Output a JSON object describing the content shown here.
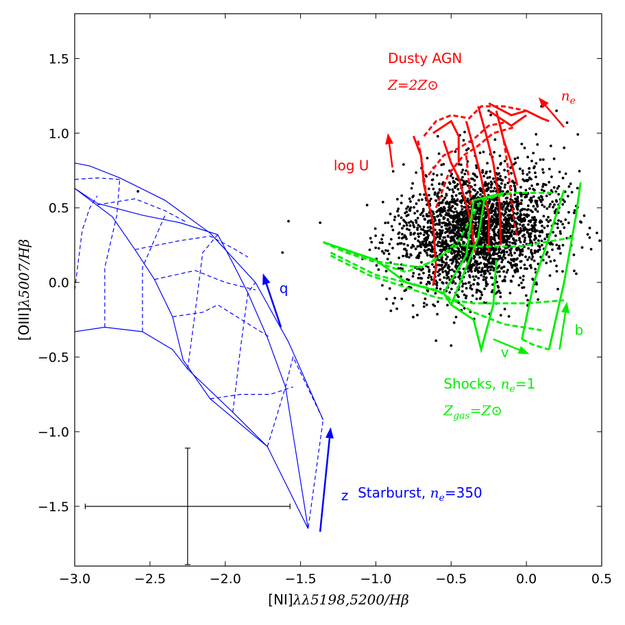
{
  "chart_data": {
    "type": "scatter",
    "xlim": [
      -3.0,
      0.5
    ],
    "ylim": [
      -1.9,
      1.8
    ],
    "x_ticks": [
      {
        "value": -3.0,
        "label": "−3.0"
      },
      {
        "value": -2.5,
        "label": "−2.5"
      },
      {
        "value": -2.0,
        "label": "−2.0"
      },
      {
        "value": -1.5,
        "label": "−1.5"
      },
      {
        "value": -1.0,
        "label": "−1.0"
      },
      {
        "value": -0.5,
        "label": "−0.5"
      },
      {
        "value": 0.0,
        "label": "0.0"
      },
      {
        "value": 0.5,
        "label": "0.5"
      }
    ],
    "y_ticks": [
      {
        "value": -1.5,
        "label": "−1.5"
      },
      {
        "value": -1.0,
        "label": "−1.0"
      },
      {
        "value": -0.5,
        "label": "−0.5"
      },
      {
        "value": 0.0,
        "label": "0.0"
      },
      {
        "value": 0.5,
        "label": "0.5"
      },
      {
        "value": 1.0,
        "label": "1.0"
      },
      {
        "value": 1.5,
        "label": "1.5"
      }
    ],
    "xlabel": {
      "plain": "[NI]",
      "math": "λλ5198,5200/Hβ"
    },
    "ylabel": {
      "plain": "[OIII]",
      "math": "λ5007/Hβ"
    },
    "grid": false,
    "observed_points": {
      "color": "#000000",
      "cluster": {
        "x_mean": -0.32,
        "y_mean": 0.35,
        "x_sd": 0.3,
        "y_sd": 0.2,
        "count": 2600
      },
      "outliers": [
        [
          -1.58,
          0.41
        ],
        [
          -1.37,
          0.4
        ],
        [
          -1.62,
          0.2
        ],
        [
          -0.9,
          -0.19
        ],
        [
          -0.6,
          -0.39
        ],
        [
          -0.48,
          -0.27
        ],
        [
          -0.25,
          1.15
        ],
        [
          0.1,
          1.18
        ],
        [
          0.2,
          1.15
        ],
        [
          0.27,
          1.07
        ],
        [
          -2.58,
          0.61
        ],
        [
          -0.8,
          -0.05
        ],
        [
          -0.17,
          -0.22
        ],
        [
          0.42,
          0.3
        ]
      ]
    },
    "error_bar": {
      "x": -2.25,
      "y": -1.5,
      "xerr": 0.68,
      "yerr": 0.39,
      "color": "#000000"
    },
    "starburst_grid": {
      "color": "#0000ff",
      "solid_lines": [
        [
          [
            -3.0,
            0.8
          ],
          [
            -2.9,
            0.78
          ],
          [
            -2.7,
            0.7
          ],
          [
            -2.4,
            0.55
          ],
          [
            -2.1,
            0.33
          ],
          [
            -1.8,
            0.0
          ],
          [
            -1.58,
            -0.4
          ],
          [
            -1.35,
            -0.92
          ]
        ],
        [
          [
            -3.0,
            0.63
          ],
          [
            -2.85,
            0.53
          ],
          [
            -2.55,
            0.45
          ],
          [
            -2.3,
            0.4
          ],
          [
            -2.05,
            0.32
          ],
          [
            -1.95,
            0.13
          ],
          [
            -1.85,
            -0.07
          ],
          [
            -1.72,
            -0.37
          ],
          [
            -1.6,
            -0.7
          ],
          [
            -1.45,
            -1.65
          ]
        ],
        [
          [
            -3.0,
            0.63
          ],
          [
            -2.75,
            0.44
          ],
          [
            -2.6,
            0.22
          ],
          [
            -2.47,
            0.02
          ],
          [
            -2.35,
            -0.23
          ],
          [
            -2.28,
            -0.52
          ],
          [
            -2.1,
            -0.78
          ],
          [
            -1.72,
            -1.1
          ],
          [
            -1.45,
            -1.65
          ]
        ],
        [
          [
            -3.0,
            -0.33
          ],
          [
            -2.8,
            -0.3
          ],
          [
            -2.55,
            -0.33
          ],
          [
            -2.35,
            -0.45
          ],
          [
            -2.25,
            -0.58
          ],
          [
            -1.95,
            -0.87
          ],
          [
            -1.72,
            -1.1
          ]
        ]
      ],
      "dashed_lines": [
        [
          [
            -3.0,
            0.69
          ],
          [
            -2.85,
            0.7
          ],
          [
            -2.7,
            0.69
          ]
        ],
        [
          [
            -2.85,
            0.52
          ],
          [
            -2.6,
            0.56
          ],
          [
            -2.4,
            0.48
          ],
          [
            -2.25,
            0.4
          ]
        ],
        [
          [
            -2.6,
            0.22
          ],
          [
            -2.3,
            0.28
          ],
          [
            -2.1,
            0.31
          ],
          [
            -1.95,
            0.23
          ],
          [
            -1.85,
            0.17
          ]
        ],
        [
          [
            -2.47,
            0.02
          ],
          [
            -2.2,
            0.08
          ],
          [
            -2.0,
            0.0
          ],
          [
            -1.8,
            -0.05
          ]
        ],
        [
          [
            -2.35,
            -0.23
          ],
          [
            -2.15,
            -0.2
          ],
          [
            -2.05,
            -0.15
          ],
          [
            -1.7,
            -0.37
          ]
        ],
        [
          [
            -2.1,
            -0.78
          ],
          [
            -1.9,
            -0.75
          ],
          [
            -1.7,
            -0.75
          ],
          [
            -1.55,
            -0.7
          ]
        ],
        [
          [
            -3.0,
            -0.05
          ],
          [
            -2.95,
            0.35
          ],
          [
            -2.9,
            0.5
          ],
          [
            -2.85,
            0.58
          ]
        ],
        [
          [
            -2.8,
            -0.3
          ],
          [
            -2.8,
            0.1
          ],
          [
            -2.72,
            0.45
          ],
          [
            -2.7,
            0.7
          ]
        ],
        [
          [
            -2.55,
            -0.33
          ],
          [
            -2.55,
            0.1
          ],
          [
            -2.4,
            0.45
          ]
        ],
        [
          [
            -2.25,
            -0.58
          ],
          [
            -2.2,
            -0.2
          ],
          [
            -2.15,
            0.2
          ],
          [
            -2.05,
            0.32
          ]
        ],
        [
          [
            -1.95,
            -0.87
          ],
          [
            -1.9,
            -0.45
          ],
          [
            -1.85,
            -0.07
          ],
          [
            -1.8,
            0.0
          ]
        ],
        [
          [
            -1.72,
            -1.1
          ],
          [
            -1.6,
            -0.7
          ],
          [
            -1.55,
            -0.5
          ],
          [
            -1.35,
            -0.92
          ],
          [
            -1.45,
            -1.65
          ]
        ]
      ]
    },
    "shock_grid": {
      "color": "#00ee00",
      "solid_lines": [
        [
          [
            -1.35,
            0.27
          ],
          [
            -1.0,
            0.15
          ],
          [
            -0.8,
            0.0
          ],
          [
            -0.55,
            -0.07
          ],
          [
            -0.5,
            -0.15
          ],
          [
            -0.35,
            -0.25
          ]
        ],
        [
          [
            -0.55,
            -0.07
          ],
          [
            -0.4,
            0.18
          ],
          [
            -0.35,
            0.55
          ],
          [
            -0.15,
            0.6
          ]
        ],
        [
          [
            -0.5,
            -0.15
          ],
          [
            -0.32,
            0.3
          ],
          [
            -0.28,
            0.55
          ]
        ],
        [
          [
            -0.35,
            -0.25
          ],
          [
            -0.3,
            -0.45
          ],
          [
            -0.22,
            -0.15
          ],
          [
            -0.2,
            0.15
          ]
        ],
        [
          [
            -0.03,
            -0.38
          ],
          [
            0.05,
            0.0
          ],
          [
            0.15,
            0.3
          ],
          [
            0.25,
            0.62
          ]
        ],
        [
          [
            0.15,
            -0.45
          ],
          [
            0.25,
            0.0
          ],
          [
            0.33,
            0.45
          ],
          [
            0.36,
            0.67
          ]
        ]
      ],
      "dashed_lines": [
        [
          [
            -1.35,
            0.27
          ],
          [
            -1.2,
            0.2
          ],
          [
            -0.8,
            0.07
          ],
          [
            -0.6,
            0.15
          ],
          [
            -0.45,
            0.28
          ],
          [
            -0.3,
            0.55
          ],
          [
            -0.1,
            0.6
          ],
          [
            0.2,
            0.6
          ]
        ],
        [
          [
            -1.3,
            0.25
          ],
          [
            -1.0,
            0.14
          ],
          [
            -0.7,
            0.1
          ],
          [
            -0.45,
            0.25
          ],
          [
            -0.3,
            0.24
          ],
          [
            -0.05,
            0.24
          ],
          [
            0.3,
            0.3
          ]
        ],
        [
          [
            -1.3,
            0.18
          ],
          [
            -1.05,
            0.05
          ],
          [
            -0.9,
            0.0
          ],
          [
            -0.6,
            -0.1
          ],
          [
            -0.35,
            -0.14
          ],
          [
            0.0,
            -0.14
          ],
          [
            0.25,
            -0.12
          ]
        ],
        [
          [
            -1.3,
            0.2
          ],
          [
            -1.0,
            0.05
          ],
          [
            -0.6,
            -0.05
          ],
          [
            -0.35,
            -0.2
          ],
          [
            -0.15,
            -0.28
          ],
          [
            0.1,
            -0.32
          ]
        ],
        [
          [
            -0.03,
            -0.38
          ],
          [
            0.05,
            -0.42
          ],
          [
            0.15,
            -0.45
          ]
        ]
      ]
    },
    "agn_grid": {
      "color": "#ff0000",
      "solid_lines": [
        [
          [
            -0.75,
            0.98
          ],
          [
            -0.7,
            0.85
          ],
          [
            -0.68,
            0.65
          ],
          [
            -0.62,
            0.4
          ],
          [
            -0.6,
            0.1
          ],
          [
            -0.62,
            -0.02
          ]
        ],
        [
          [
            -0.62,
            1.0
          ],
          [
            -0.5,
            1.08
          ],
          [
            -0.45,
            0.98
          ],
          [
            -0.45,
            0.8
          ]
        ],
        [
          [
            -0.55,
            0.95
          ],
          [
            -0.5,
            0.8
          ],
          [
            -0.45,
            0.7
          ],
          [
            -0.38,
            0.45
          ],
          [
            -0.34,
            0.2
          ]
        ],
        [
          [
            -0.4,
            1.08
          ],
          [
            -0.35,
            0.9
          ],
          [
            -0.3,
            0.7
          ],
          [
            -0.25,
            0.45
          ],
          [
            -0.25,
            0.2
          ]
        ],
        [
          [
            -0.32,
            1.18
          ],
          [
            -0.27,
            1.0
          ],
          [
            -0.22,
            0.8
          ],
          [
            -0.18,
            0.55
          ],
          [
            -0.17,
            0.25
          ]
        ],
        [
          [
            -0.2,
            1.15
          ],
          [
            -0.15,
            0.95
          ],
          [
            -0.1,
            0.8
          ],
          [
            -0.06,
            0.65
          ]
        ],
        [
          [
            -0.25,
            1.2
          ],
          [
            -0.1,
            1.12
          ],
          [
            0.0,
            1.15
          ],
          [
            0.1,
            1.1
          ],
          [
            0.15,
            1.08
          ]
        ],
        [
          [
            -0.25,
            1.15
          ],
          [
            -0.1,
            1.05
          ],
          [
            0.0,
            1.12
          ]
        ]
      ],
      "dashed_lines": [
        [
          [
            -0.68,
            0.98
          ],
          [
            -0.6,
            1.08
          ],
          [
            -0.5,
            1.12
          ],
          [
            -0.38,
            1.1
          ],
          [
            -0.3,
            1.18
          ],
          [
            -0.15,
            1.18
          ],
          [
            0.0,
            1.15
          ]
        ],
        [
          [
            -0.65,
            0.72
          ],
          [
            -0.55,
            0.85
          ],
          [
            -0.45,
            0.9
          ],
          [
            -0.35,
            0.96
          ],
          [
            -0.25,
            1.05
          ],
          [
            -0.15,
            1.07
          ]
        ],
        [
          [
            -0.6,
            0.5
          ],
          [
            -0.52,
            0.72
          ],
          [
            -0.42,
            0.85
          ],
          [
            -0.34,
            0.9
          ],
          [
            -0.22,
            1.0
          ],
          [
            -0.08,
            1.04
          ]
        ],
        [
          [
            -0.72,
            0.95
          ],
          [
            -0.7,
            0.85
          ],
          [
            -0.68,
            0.7
          ],
          [
            -0.66,
            0.55
          ]
        ],
        [
          [
            -0.4,
            0.85
          ],
          [
            -0.38,
            0.65
          ],
          [
            -0.36,
            0.45
          ],
          [
            -0.35,
            0.25
          ]
        ],
        [
          [
            -0.15,
            0.95
          ],
          [
            -0.12,
            0.75
          ],
          [
            -0.1,
            0.55
          ],
          [
            -0.08,
            0.4
          ],
          [
            -0.06,
            0.3
          ]
        ]
      ]
    },
    "arrows": [
      {
        "name": "q",
        "color": "#0000ff",
        "from": [
          -1.63,
          -0.3
        ],
        "to": [
          -1.75,
          0.06
        ],
        "label": "q",
        "label_pos": [
          -1.64,
          -0.07
        ]
      },
      {
        "name": "z",
        "color": "#0000ff",
        "from": [
          -1.37,
          -1.67
        ],
        "to": [
          -1.3,
          -0.97
        ],
        "label": "z",
        "label_pos": [
          -1.23,
          -1.46
        ]
      },
      {
        "name": "log-u",
        "color": "#ff0000",
        "from": [
          -0.89,
          0.77
        ],
        "to": [
          -0.92,
          1.0
        ],
        "label": "log U",
        "label_pos": [
          -1.28,
          0.75
        ]
      },
      {
        "name": "ne",
        "color": "#ff0000",
        "from": [
          0.25,
          1.04
        ],
        "to": [
          0.08,
          1.24
        ],
        "label": "n_e",
        "label_pos": [
          0.23,
          1.22
        ]
      },
      {
        "name": "v",
        "color": "#00ee00",
        "from": [
          -0.22,
          -0.38
        ],
        "to": [
          0.02,
          -0.48
        ],
        "label": "v",
        "label_pos": [
          -0.17,
          -0.5
        ]
      },
      {
        "name": "b",
        "color": "#00ee00",
        "from": [
          0.22,
          -0.45
        ],
        "to": [
          0.27,
          -0.13
        ],
        "label": "b",
        "label_pos": [
          0.32,
          -0.35
        ]
      }
    ],
    "annotations": [
      {
        "name": "dusty-agn-label",
        "color": "#ff0000",
        "pos": [
          -0.92,
          1.47
        ],
        "plain": "Dusty AGN",
        "math": ""
      },
      {
        "name": "dusty-agn-metallicity",
        "color": "#ff0000",
        "pos": [
          -0.92,
          1.29
        ],
        "plain": "",
        "math": "Z=2Z⊙"
      },
      {
        "name": "shocks-label",
        "color": "#00ee00",
        "pos": [
          -0.55,
          -0.71
        ],
        "plain": "Shocks, ",
        "math": "n_e",
        "plain_after": "=1"
      },
      {
        "name": "shocks-metallicity",
        "color": "#00ee00",
        "pos": [
          -0.55,
          -0.89
        ],
        "plain": "",
        "math": "Z_gas=Z⊙"
      },
      {
        "name": "starburst-label",
        "color": "#0000ff",
        "pos": [
          -1.12,
          -1.44
        ],
        "plain": "Starburst, ",
        "math": "n_e",
        "plain_after": "=350"
      }
    ]
  }
}
